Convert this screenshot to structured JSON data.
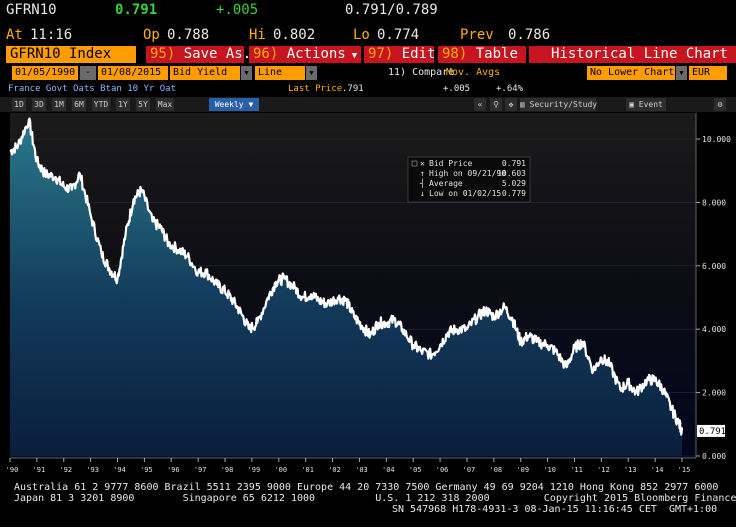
{
  "header": {
    "ticker": "GFRN10",
    "last": "0.791",
    "change": "+.005",
    "bid_ask": "0.791/0.789",
    "time_label": "At",
    "time": "11:16",
    "open_label": "Op",
    "open": "0.788",
    "high_label": "Hi",
    "high": "0.802",
    "low_label": "Lo",
    "low": "0.774",
    "prev_label": "Prev",
    "prev": "0.786"
  },
  "menubar": {
    "security": "GFRN10 Index",
    "save": {
      "num": "95)",
      "label": "Save As..."
    },
    "actions": {
      "num": "96)",
      "label": "Actions"
    },
    "edit": {
      "num": "97)",
      "label": "Edit"
    },
    "table": {
      "num": "98)",
      "label": "Table"
    },
    "title": "Historical Line Chart"
  },
  "fields": {
    "start_date": "01/05/1990",
    "dash": "-",
    "end_date": "01/08/2015",
    "field": "Bid Yield",
    "style": "Line",
    "compare": "11) Compare",
    "mov_avgs": "Mov. Avgs",
    "lower_chart": "No Lower Chart",
    "currency": "EUR"
  },
  "info": {
    "description": "France Govt Oats Btan 10 Yr Oat",
    "last_price_label": "Last Price",
    "last_price": ".791",
    "change": "+.005",
    "pct": "+.64%"
  },
  "toolbar": {
    "ranges": [
      "1D",
      "3D",
      "1M",
      "6M",
      "YTD",
      "1Y",
      "5Y",
      "Max"
    ],
    "period": "Weekly",
    "security_study": "Security/Study",
    "event": "Event"
  },
  "legend": {
    "bid_price_label": "Bid Price",
    "bid_price": "0.791",
    "high_label": "High on 09/21/90",
    "high": "10.603",
    "average_label": "Average",
    "average": "5.029",
    "low_label": "Low on 01/02/15",
    "low": "0.779"
  },
  "chart_data": {
    "type": "area",
    "x": [
      1990.0,
      1990.3,
      1990.7,
      1991.0,
      1991.3,
      1991.7,
      1992.0,
      1992.3,
      1992.6,
      1993.0,
      1993.4,
      1993.7,
      1994.0,
      1994.3,
      1994.6,
      1994.9,
      1995.3,
      1995.6,
      1995.9,
      1996.3,
      1996.6,
      1997.0,
      1997.3,
      1997.7,
      1998.0,
      1998.3,
      1998.6,
      1998.9,
      1999.2,
      1999.6,
      1999.9,
      2000.2,
      2000.6,
      2000.9,
      2001.2,
      2001.5,
      2001.8,
      2002.2,
      2002.5,
      2002.8,
      2003.1,
      2003.4,
      2003.7,
      2004.0,
      2004.3,
      2004.6,
      2005.0,
      2005.3,
      2005.7,
      2006.0,
      2006.3,
      2006.6,
      2007.0,
      2007.4,
      2007.7,
      2008.0,
      2008.4,
      2008.7,
      2009.0,
      2009.3,
      2009.6,
      2010.0,
      2010.3,
      2010.7,
      2011.0,
      2011.3,
      2011.7,
      2012.0,
      2012.3,
      2012.7,
      2013.0,
      2013.3,
      2013.7,
      2014.0,
      2014.3,
      2014.6,
      2014.9,
      2015.0
    ],
    "y": [
      9.6,
      9.8,
      10.6,
      9.3,
      8.9,
      8.8,
      8.5,
      8.4,
      8.9,
      7.6,
      6.4,
      5.9,
      5.6,
      7.0,
      8.1,
      8.4,
      7.4,
      7.2,
      6.7,
      6.5,
      6.3,
      5.8,
      5.8,
      5.4,
      5.2,
      4.9,
      4.5,
      4.0,
      4.2,
      5.0,
      5.5,
      5.6,
      5.3,
      5.0,
      5.1,
      4.9,
      4.8,
      5.0,
      4.9,
      4.4,
      4.1,
      3.8,
      4.2,
      4.2,
      4.3,
      4.0,
      3.5,
      3.3,
      3.2,
      3.5,
      3.9,
      4.0,
      4.0,
      4.4,
      4.6,
      4.4,
      4.7,
      4.3,
      3.6,
      3.8,
      3.6,
      3.5,
      3.3,
      2.8,
      3.4,
      3.6,
      2.7,
      3.1,
      2.9,
      2.1,
      2.3,
      2.0,
      2.4,
      2.4,
      2.1,
      1.5,
      1.0,
      0.791
    ],
    "x_ticks": [
      "'90",
      "'91",
      "'92",
      "'93",
      "'94",
      "'95",
      "'96",
      "'97",
      "'98",
      "'99",
      "'00",
      "'01",
      "'02",
      "'03",
      "'04",
      "'05",
      "'06",
      "'07",
      "'08",
      "'09",
      "'10",
      "'11",
      "'12",
      "'13",
      "'14",
      "'15"
    ],
    "y_ticks": [
      "0.000",
      "2.000",
      "4.000",
      "6.000",
      "8.000",
      "10.000"
    ],
    "ylim": [
      0,
      10.6
    ],
    "xlim": [
      1990,
      2015
    ],
    "last_label": "0.791",
    "colors": {
      "line": "#ffffff",
      "fill_top": "#2a7a8a",
      "fill_bottom": "#0a1e3c",
      "bg_top": "#1b1b1b",
      "bg_bottom": "#03061e"
    }
  },
  "footer": {
    "line1": "Australia 61 2 9777 8600 Brazil 5511 2395 9000 Europe 44 20 7330 7500 Germany 49 69 9204 1210 Hong Kong 852 2977 6000",
    "line2": "Japan 81 3 3201 8900        Singapore 65 6212 1000          U.S. 1 212 318 2000         Copyright 2015 Bloomberg Finance L.P.",
    "line3": "SN 547968 H178-4931-3 08-Jan-15 11:16:45 CET  GMT+1:00"
  }
}
